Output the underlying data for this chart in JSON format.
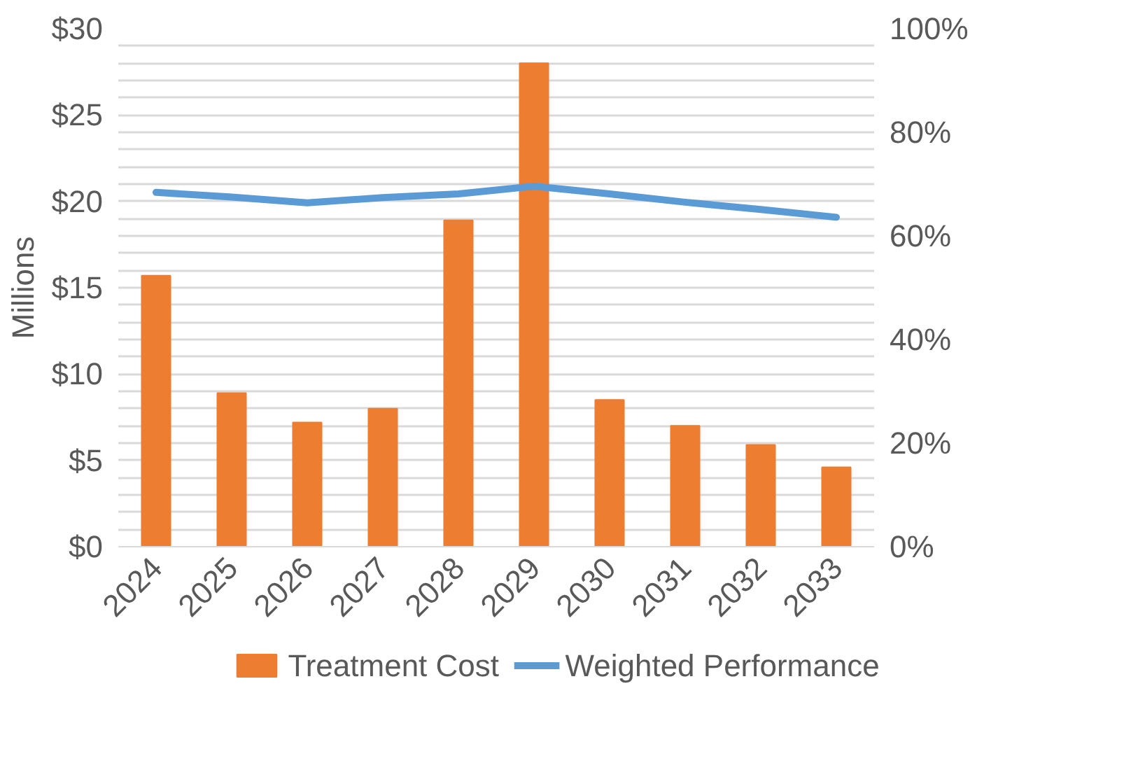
{
  "chart_data": {
    "type": "bar",
    "ylabel": "Millions",
    "categories": [
      "2024",
      "2025",
      "2026",
      "2027",
      "2028",
      "2029",
      "2030",
      "2031",
      "2032",
      "2033"
    ],
    "series": [
      {
        "name": "Treatment Cost",
        "color": "#ed7d31",
        "values": [
          15.7,
          8.9,
          7.2,
          8.0,
          18.9,
          28.0,
          8.5,
          7.0,
          5.9,
          4.6
        ]
      },
      {
        "name": "Weighted Performance",
        "type": "line",
        "axis": "y2",
        "color": "#5b9bd5",
        "values": [
          68.4,
          67.5,
          66.4,
          67.4,
          68.1,
          69.6,
          68.1,
          66.5,
          65.1,
          63.6
        ]
      }
    ],
    "ylim": [
      0,
      30
    ],
    "yticks": [
      {
        "value": 0,
        "label": "$0"
      },
      {
        "value": 1,
        "label": null
      },
      {
        "value": 2,
        "label": null
      },
      {
        "value": 3,
        "label": null
      },
      {
        "value": 4,
        "label": null
      },
      {
        "value": 5,
        "label": "$5"
      },
      {
        "value": 6,
        "label": null
      },
      {
        "value": 7,
        "label": null
      },
      {
        "value": 8,
        "label": null
      },
      {
        "value": 9,
        "label": null
      },
      {
        "value": 10,
        "label": "$10"
      },
      {
        "value": 11,
        "label": null
      },
      {
        "value": 12,
        "label": null
      },
      {
        "value": 13,
        "label": null
      },
      {
        "value": 14,
        "label": null
      },
      {
        "value": 15,
        "label": "$15"
      },
      {
        "value": 16,
        "label": null
      },
      {
        "value": 17,
        "label": null
      },
      {
        "value": 18,
        "label": null
      },
      {
        "value": 19,
        "label": null
      },
      {
        "value": 20,
        "label": "$20"
      },
      {
        "value": 21,
        "label": null
      },
      {
        "value": 22,
        "label": null
      },
      {
        "value": 23,
        "label": null
      },
      {
        "value": 24,
        "label": null
      },
      {
        "value": 25,
        "label": "$25"
      },
      {
        "value": 26,
        "label": null
      },
      {
        "value": 27,
        "label": null
      },
      {
        "value": 28,
        "label": null
      },
      {
        "value": 29,
        "label": null
      },
      {
        "value": 30,
        "label": "$30"
      }
    ],
    "y2lim": [
      0,
      100
    ],
    "y2ticks": [
      {
        "value": 0,
        "label": "0%"
      },
      {
        "value": 20,
        "label": "20%"
      },
      {
        "value": 40,
        "label": "40%"
      },
      {
        "value": 60,
        "label": "60%"
      },
      {
        "value": 80,
        "label": "80%"
      },
      {
        "value": 100,
        "label": "100%"
      }
    ],
    "grid": "y",
    "legend": "bottom",
    "marker": "none",
    "line_style": "solid"
  }
}
